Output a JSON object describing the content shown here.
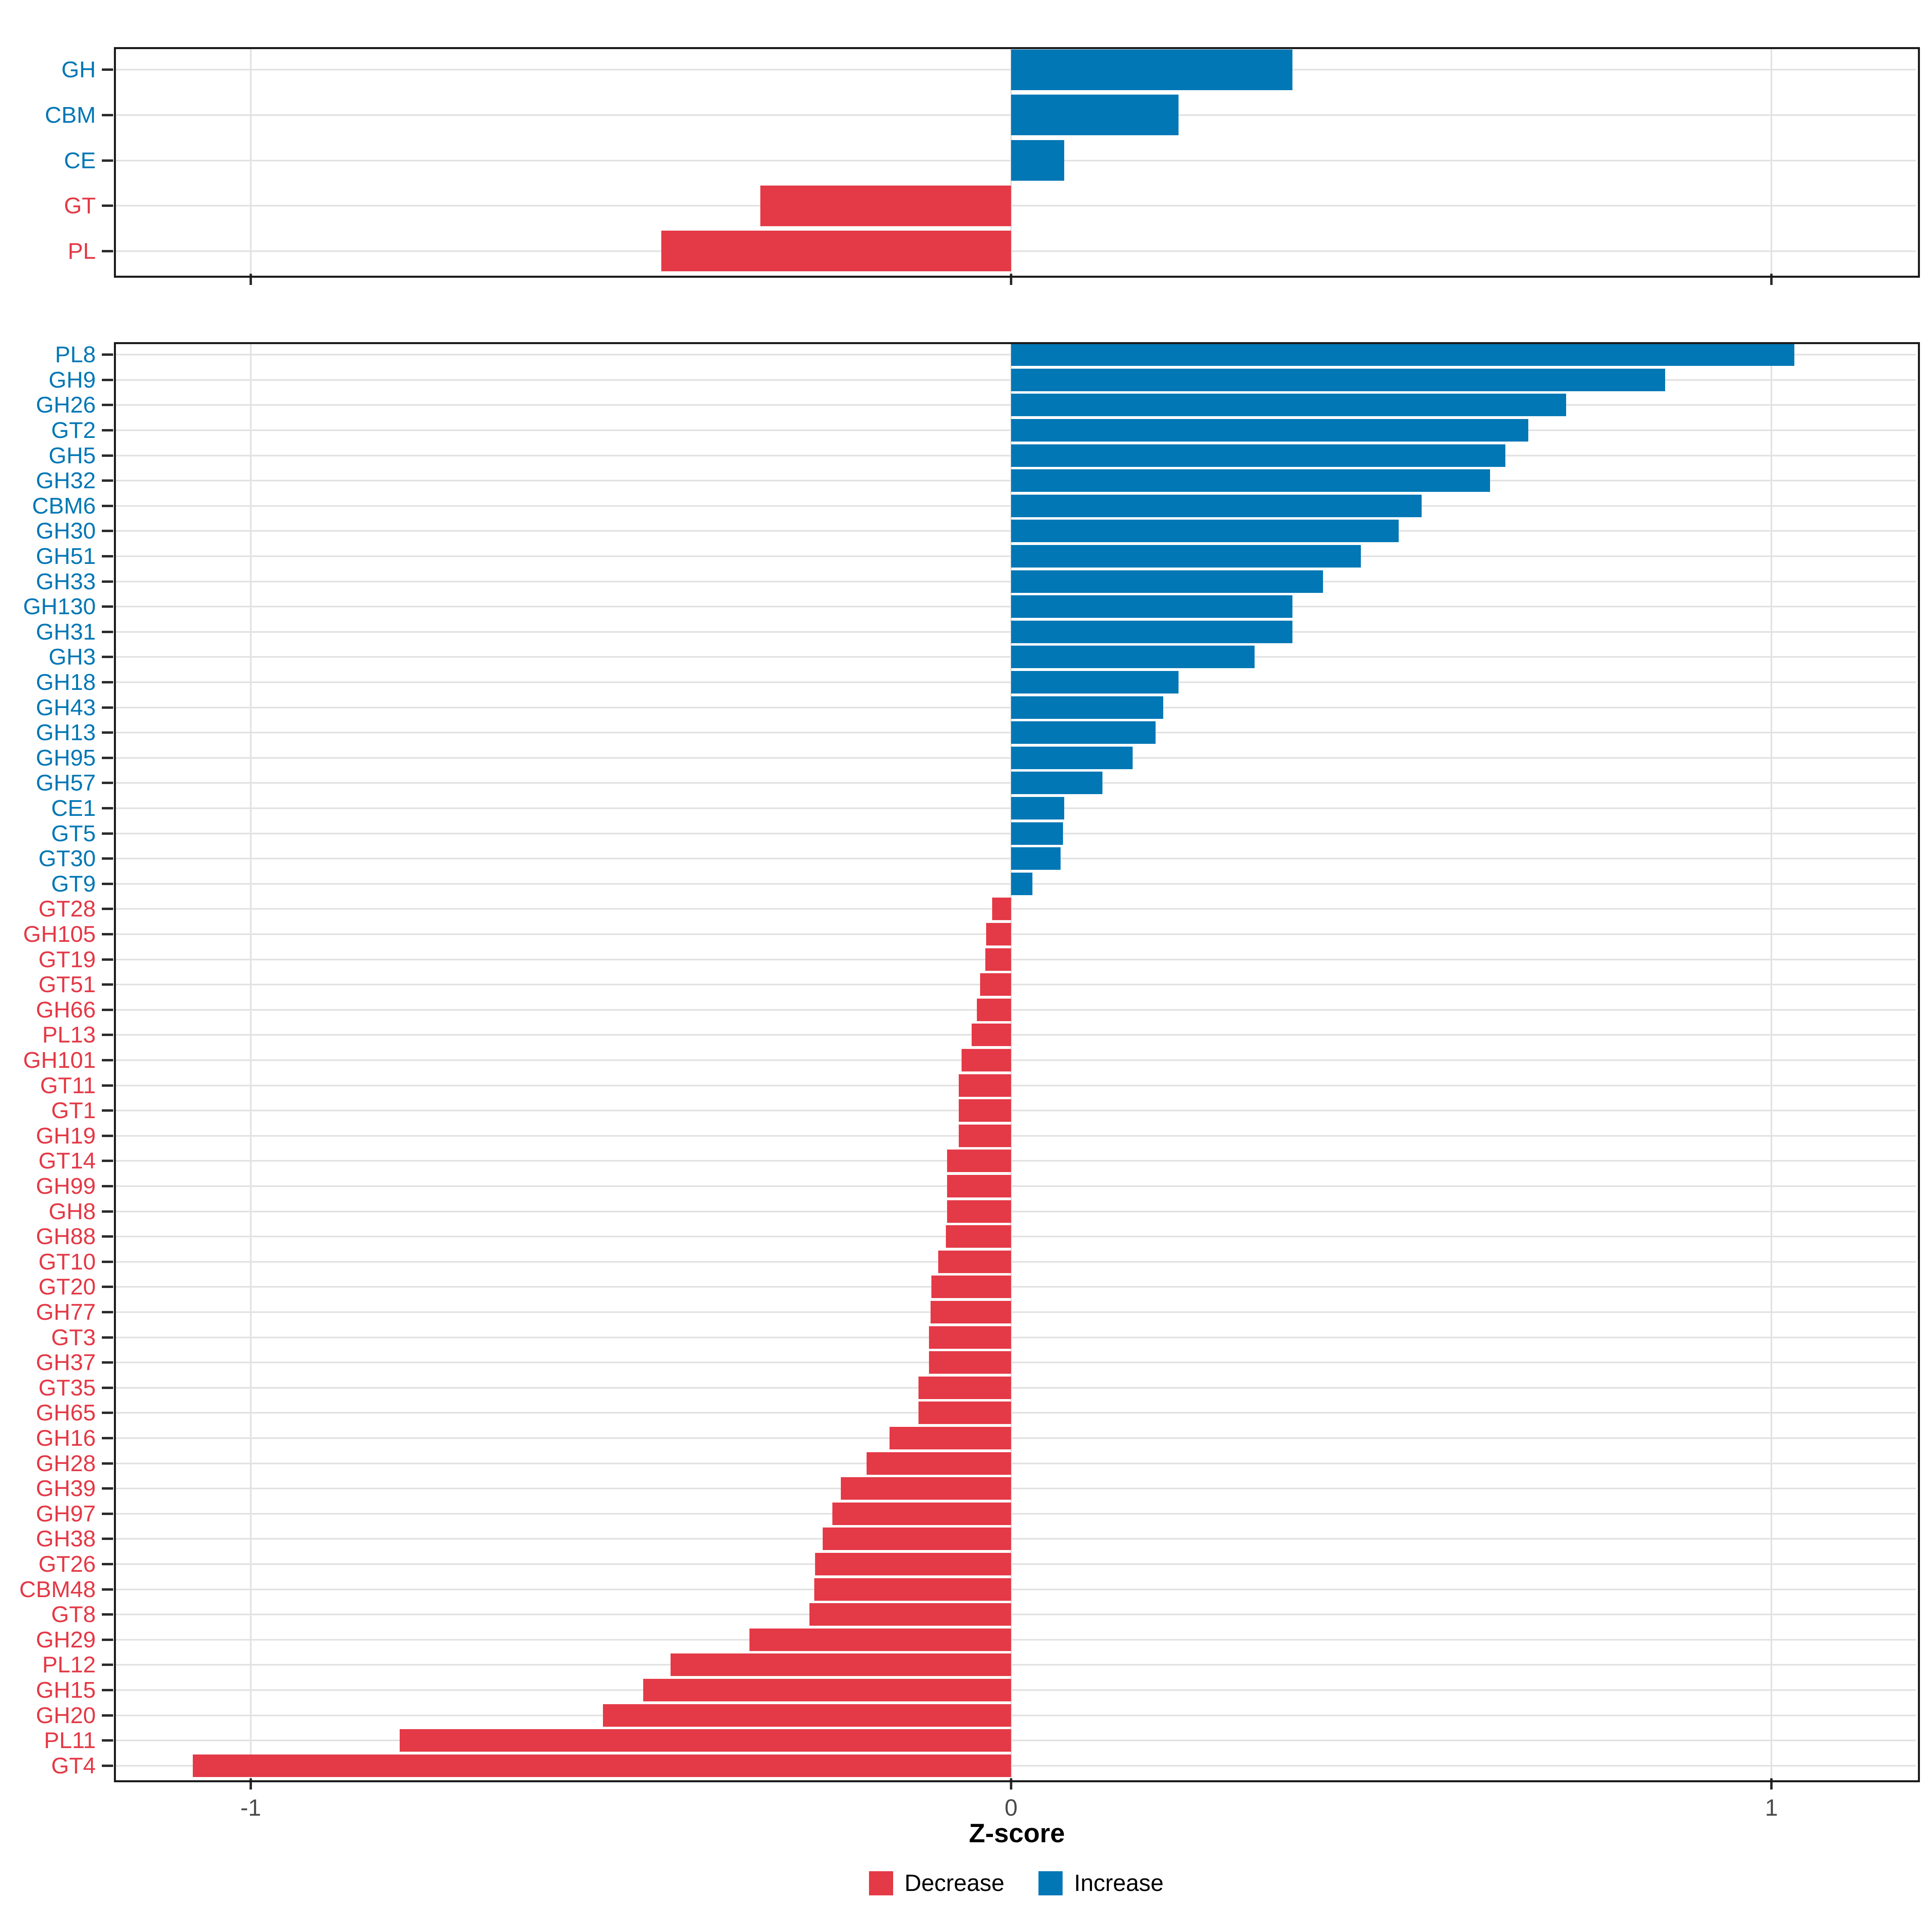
{
  "chart_data": [
    {
      "type": "bar",
      "orientation": "horizontal",
      "panel": "top-summary",
      "title": "",
      "categories": [
        "GH",
        "CBM",
        "CE",
        "GT",
        "PL"
      ],
      "values": [
        0.37,
        0.22,
        0.07,
        -0.33,
        -0.46
      ],
      "colors": {
        "increase": "#0277B5",
        "decrease": "#E43946"
      },
      "xlim": [
        -1.18,
        1.19
      ],
      "x_ticks": [
        -1,
        0,
        1
      ],
      "grid": true,
      "legend_position": "none"
    },
    {
      "type": "bar",
      "orientation": "horizontal",
      "panel": "bottom-families",
      "title": "",
      "xlabel": "Z-score",
      "categories": [
        "PL8",
        "GH9",
        "GH26",
        "GT2",
        "GH5",
        "GH32",
        "CBM6",
        "GH30",
        "GH51",
        "GH33",
        "GH130",
        "GH31",
        "GH3",
        "GH18",
        "GH43",
        "GH13",
        "GH95",
        "GH57",
        "CE1",
        "GT5",
        "GT30",
        "GT9",
        "GT28",
        "GH105",
        "GT19",
        "GT51",
        "GH66",
        "PL13",
        "GH101",
        "GT11",
        "GT1",
        "GH19",
        "GT14",
        "GH99",
        "GH8",
        "GH88",
        "GT10",
        "GT20",
        "GH77",
        "GT3",
        "GH37",
        "GT35",
        "GH65",
        "GH16",
        "GH28",
        "GH39",
        "GH97",
        "GH38",
        "GT26",
        "CBM48",
        "GT8",
        "GH29",
        "PL12",
        "GH15",
        "GH20",
        "PL11",
        "GT4"
      ],
      "values": [
        1.03,
        0.86,
        0.73,
        0.68,
        0.65,
        0.63,
        0.54,
        0.51,
        0.46,
        0.41,
        0.37,
        0.37,
        0.32,
        0.22,
        0.2,
        0.19,
        0.16,
        0.12,
        0.07,
        0.068,
        0.065,
        0.028,
        -0.025,
        -0.033,
        -0.034,
        -0.041,
        -0.045,
        -0.052,
        -0.065,
        -0.069,
        -0.069,
        -0.069,
        -0.084,
        -0.084,
        -0.084,
        -0.086,
        -0.096,
        -0.105,
        -0.106,
        -0.108,
        -0.108,
        -0.122,
        -0.122,
        -0.16,
        -0.19,
        -0.224,
        -0.235,
        -0.248,
        -0.258,
        -0.259,
        -0.265,
        -0.344,
        -0.448,
        -0.484,
        -0.537,
        -0.804,
        -1.076
      ],
      "colors": {
        "increase": "#0277B5",
        "decrease": "#E43946"
      },
      "xlim": [
        -1.18,
        1.19
      ],
      "x_ticks": [
        -1,
        0,
        1
      ],
      "grid": true,
      "legend_position": "bottom"
    }
  ],
  "axis": {
    "xlabel": "Z-score",
    "ticks": [
      {
        "value": -1,
        "label": "-1"
      },
      {
        "value": 0,
        "label": "0"
      },
      {
        "value": 1,
        "label": "1"
      }
    ]
  },
  "legend": {
    "items": [
      {
        "label": "Decrease",
        "color": "#E43946",
        "direction": "decrease"
      },
      {
        "label": "Increase",
        "color": "#0277B5",
        "direction": "increase"
      }
    ]
  }
}
